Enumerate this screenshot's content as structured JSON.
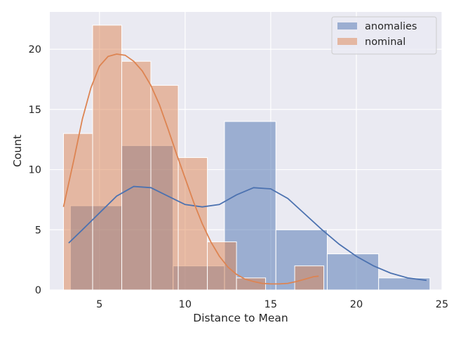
{
  "chart_data": {
    "type": "histogram",
    "xlabel": "Distance to Mean",
    "ylabel": "Count",
    "xlim": [
      2.1,
      25.0
    ],
    "ylim": [
      0,
      23.1
    ],
    "xticks": [
      5,
      10,
      15,
      20,
      25
    ],
    "yticks": [
      0,
      5,
      10,
      15,
      20
    ],
    "grid": true,
    "legend_position": "top-right",
    "series": [
      {
        "name": "anomalies",
        "color": "#4c72b0",
        "bins": [
          {
            "x0": 3.3,
            "x1": 6.3,
            "count": 7
          },
          {
            "x0": 6.3,
            "x1": 9.3,
            "count": 12
          },
          {
            "x0": 9.3,
            "x1": 12.3,
            "count": 2
          },
          {
            "x0": 12.3,
            "x1": 15.3,
            "count": 14
          },
          {
            "x0": 15.3,
            "x1": 18.3,
            "count": 5
          },
          {
            "x0": 18.3,
            "x1": 21.3,
            "count": 3
          },
          {
            "x0": 21.3,
            "x1": 24.3,
            "count": 1
          }
        ],
        "kde": [
          [
            3.2,
            3.9
          ],
          [
            4.0,
            5.0
          ],
          [
            5.0,
            6.4
          ],
          [
            6.0,
            7.8
          ],
          [
            7.0,
            8.6
          ],
          [
            8.0,
            8.5
          ],
          [
            9.0,
            7.8
          ],
          [
            10.0,
            7.1
          ],
          [
            11.0,
            6.9
          ],
          [
            12.0,
            7.1
          ],
          [
            13.0,
            7.9
          ],
          [
            14.0,
            8.5
          ],
          [
            15.0,
            8.4
          ],
          [
            16.0,
            7.6
          ],
          [
            17.0,
            6.3
          ],
          [
            18.0,
            5.0
          ],
          [
            19.0,
            3.8
          ],
          [
            20.0,
            2.8
          ],
          [
            21.0,
            2.0
          ],
          [
            22.0,
            1.4
          ],
          [
            23.0,
            1.0
          ],
          [
            24.1,
            0.8
          ]
        ]
      },
      {
        "name": "nominal",
        "color": "#dd8452",
        "bins": [
          {
            "x0": 2.9,
            "x1": 4.6,
            "count": 13
          },
          {
            "x0": 4.6,
            "x1": 6.3,
            "count": 22
          },
          {
            "x0": 6.3,
            "x1": 8.0,
            "count": 19
          },
          {
            "x0": 8.0,
            "x1": 9.6,
            "count": 17
          },
          {
            "x0": 9.6,
            "x1": 11.3,
            "count": 11
          },
          {
            "x0": 11.3,
            "x1": 13.0,
            "count": 4
          },
          {
            "x0": 13.0,
            "x1": 14.7,
            "count": 1
          },
          {
            "x0": 14.7,
            "x1": 16.4,
            "count": 0
          },
          {
            "x0": 16.4,
            "x1": 18.1,
            "count": 2
          }
        ],
        "kde": [
          [
            2.9,
            6.9
          ],
          [
            3.5,
            10.8
          ],
          [
            4.0,
            14.2
          ],
          [
            4.5,
            16.8
          ],
          [
            5.0,
            18.6
          ],
          [
            5.5,
            19.4
          ],
          [
            6.0,
            19.6
          ],
          [
            6.5,
            19.5
          ],
          [
            7.0,
            19.0
          ],
          [
            7.5,
            18.2
          ],
          [
            8.0,
            17.0
          ],
          [
            8.5,
            15.4
          ],
          [
            9.0,
            13.4
          ],
          [
            9.5,
            11.3
          ],
          [
            10.0,
            9.3
          ],
          [
            10.5,
            7.3
          ],
          [
            11.0,
            5.5
          ],
          [
            11.5,
            4.0
          ],
          [
            12.0,
            2.8
          ],
          [
            12.5,
            1.9
          ],
          [
            13.0,
            1.3
          ],
          [
            13.5,
            0.9
          ],
          [
            14.0,
            0.7
          ],
          [
            14.5,
            0.55
          ],
          [
            15.0,
            0.5
          ],
          [
            15.5,
            0.5
          ],
          [
            16.0,
            0.55
          ],
          [
            16.5,
            0.7
          ],
          [
            17.0,
            0.9
          ],
          [
            17.5,
            1.1
          ],
          [
            17.8,
            1.15
          ]
        ]
      }
    ]
  }
}
